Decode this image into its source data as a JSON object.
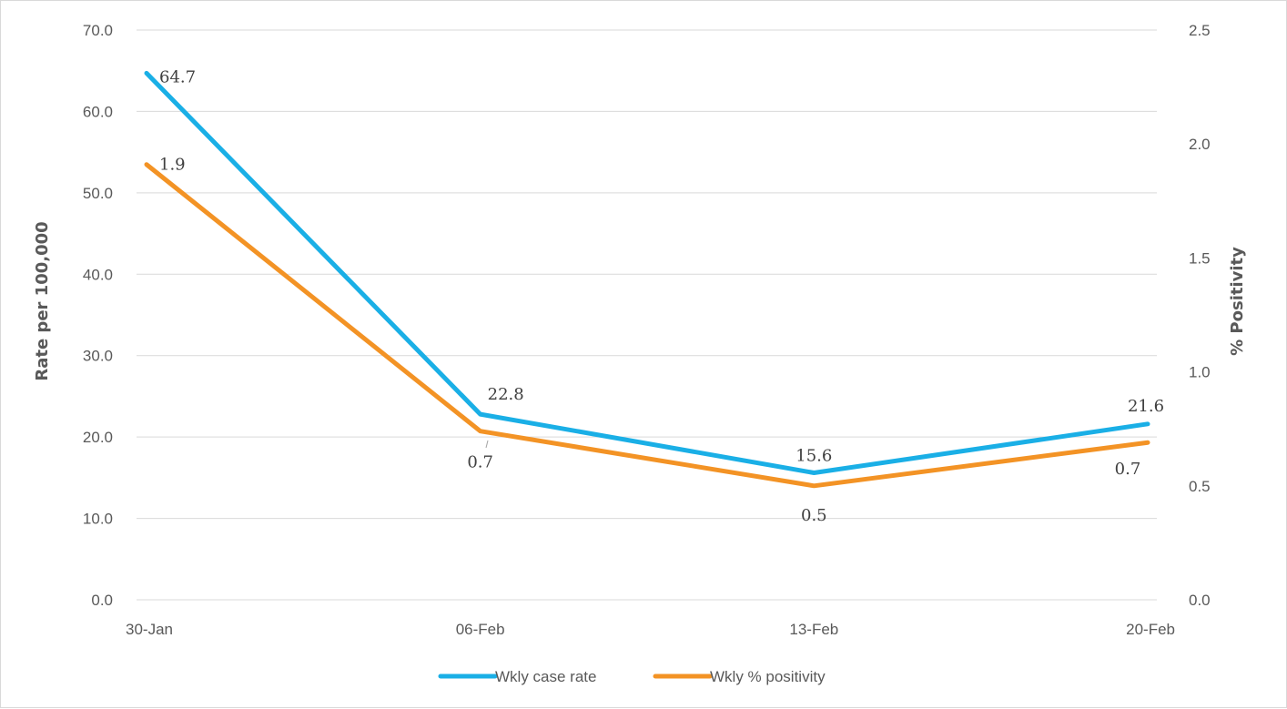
{
  "chart_data": {
    "type": "line",
    "categories": [
      "30-Jan",
      "06-Feb",
      "13-Feb",
      "20-Feb"
    ],
    "ylabel": "Rate per 100,000",
    "y2label": "% Positivity",
    "ylim": [
      0,
      70
    ],
    "y2lim": [
      0,
      2.5
    ],
    "yticks": [
      "0.0",
      "10.0",
      "20.0",
      "30.0",
      "40.0",
      "50.0",
      "60.0",
      "70.0"
    ],
    "y2ticks": [
      "0.0",
      "0.5",
      "1.0",
      "1.5",
      "2.0",
      "2.5"
    ],
    "grid": true,
    "legend_position": "bottom",
    "series": [
      {
        "name": "Wkly case rate",
        "axis": "left",
        "color": "#1aafe6",
        "values": [
          64.7,
          22.8,
          15.6,
          21.6
        ],
        "labels": [
          "64.7",
          "22.8",
          "15.6",
          "21.6"
        ]
      },
      {
        "name": "Wkly % positivity",
        "axis": "right",
        "color": "#f39325",
        "values": [
          1.91,
          0.74,
          0.5,
          0.69
        ],
        "labels": [
          "1.9",
          "0.7",
          "0.5",
          "0.7"
        ]
      }
    ]
  }
}
